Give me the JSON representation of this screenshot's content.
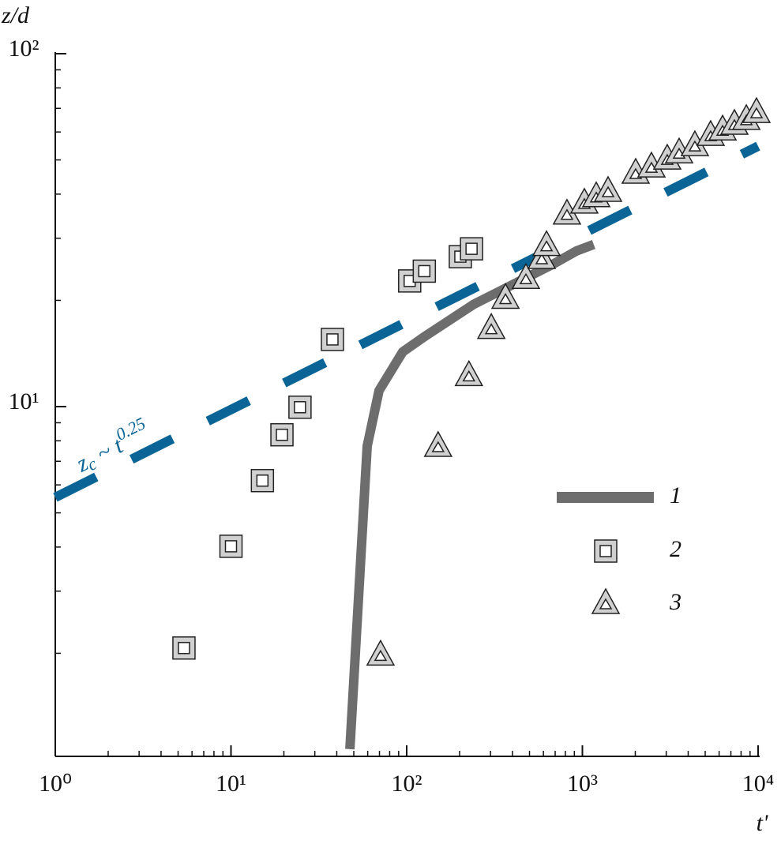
{
  "chart_data": {
    "type": "scatter",
    "log_x": true,
    "log_y": true,
    "x_label": "t'",
    "y_label": "z/d",
    "xlim": [
      1,
      10000
    ],
    "ylim": [
      1,
      100
    ],
    "xticks": [
      {
        "value": 1,
        "label": "10⁰"
      },
      {
        "value": 10,
        "label": "10¹"
      },
      {
        "value": 100,
        "label": "10²"
      },
      {
        "value": 1000,
        "label": "10³"
      },
      {
        "value": 10000,
        "label": "10⁴"
      }
    ],
    "yticks": [
      {
        "value": 10,
        "label": "10¹"
      },
      {
        "value": 100,
        "label": "10²"
      }
    ],
    "xminorticks": [
      2,
      3,
      4,
      5,
      6,
      7,
      8,
      9,
      20,
      30,
      40,
      50,
      60,
      70,
      80,
      90,
      200,
      300,
      400,
      500,
      600,
      700,
      800,
      900,
      2000,
      3000,
      4000,
      5000,
      6000,
      7000,
      8000,
      9000
    ],
    "yminorticks": [
      2,
      3,
      4,
      5,
      6,
      7,
      8,
      9,
      20,
      30,
      40,
      50,
      60,
      70,
      80,
      90
    ],
    "series": [
      {
        "name": "1",
        "style": "line",
        "color": "#6d6d6d",
        "x": [
          47.5,
          59.6,
          69.6,
          95,
          129,
          241,
          449,
          678,
          925,
          1160
        ],
        "values": [
          1.07,
          7.73,
          11.1,
          14.3,
          15.9,
          19.5,
          22.8,
          25.3,
          27.6,
          28.8
        ]
      },
      {
        "name": "2",
        "style": "square",
        "color": "#d0d0d0",
        "x": [
          5.4,
          10.0,
          15.1,
          19.5,
          24.7,
          37.8,
          104,
          126,
          202,
          234
        ],
        "values": [
          2.07,
          4.02,
          6.17,
          8.32,
          9.96,
          15.5,
          22.7,
          24.2,
          26.6,
          28.0
        ]
      },
      {
        "name": "3",
        "style": "triangle",
        "color": "#d0d0d0",
        "x": [
          71,
          151,
          226,
          303,
          365,
          477,
          587,
          625,
          817,
          1026,
          1199,
          1400,
          2010,
          2472,
          3040,
          3553,
          4366,
          5370,
          6280,
          7330,
          8570,
          9790
        ],
        "values": [
          1.97,
          7.69,
          12.2,
          16.6,
          20.2,
          23.0,
          26.2,
          28.5,
          35.0,
          37.6,
          39.2,
          40.6,
          45.7,
          47.6,
          50.1,
          52.2,
          54.7,
          58.5,
          60.6,
          62.9,
          64.9,
          67.9
        ]
      }
    ],
    "fit": {
      "color": "#0a6596",
      "x": [
        1,
        10000
      ],
      "values": [
        5.53,
        54.7
      ]
    },
    "annotation": {
      "base": "z",
      "subscript": "c",
      "middle": " ~ t",
      "exponent": "0.25"
    }
  }
}
